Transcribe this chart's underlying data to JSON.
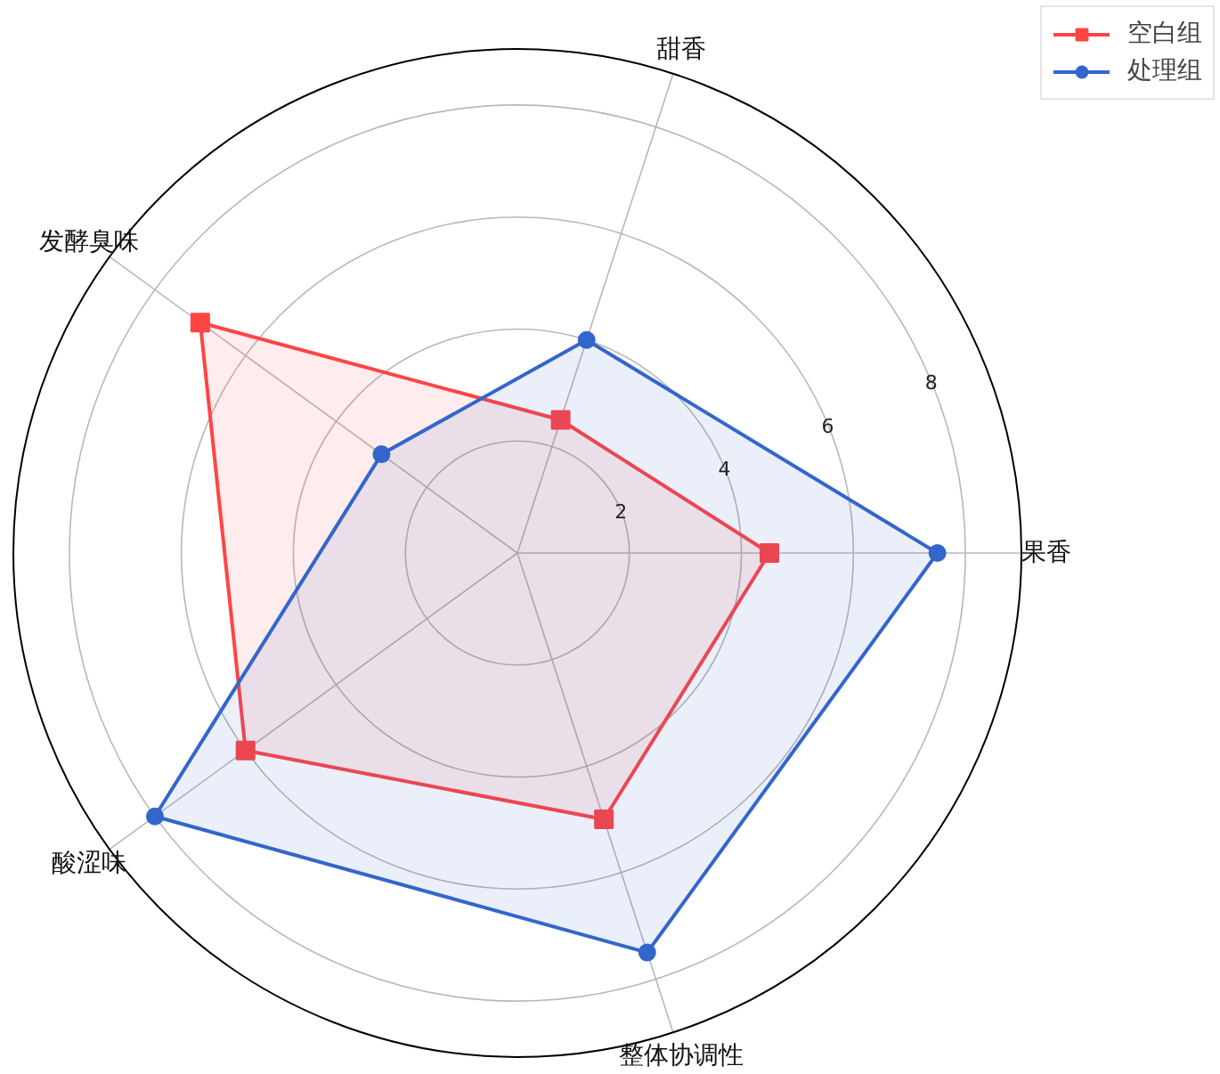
{
  "chart_data": {
    "type": "radar",
    "categories": [
      "甜香",
      "果香",
      "整体协调性",
      "酸涩味",
      "发酵臭味"
    ],
    "series": [
      {
        "name": "空白组",
        "color": "#ff4444",
        "marker": "square",
        "values": [
          2.5,
          4.5,
          5.0,
          6.0,
          7.0
        ]
      },
      {
        "name": "处理组",
        "color": "#3366cc",
        "marker": "circle",
        "values": [
          4.0,
          7.5,
          7.5,
          8.0,
          3.0
        ]
      }
    ],
    "ylim": [
      0,
      9
    ],
    "yticks": [
      2,
      4,
      6,
      8
    ],
    "grid": true,
    "legend": "top right"
  }
}
